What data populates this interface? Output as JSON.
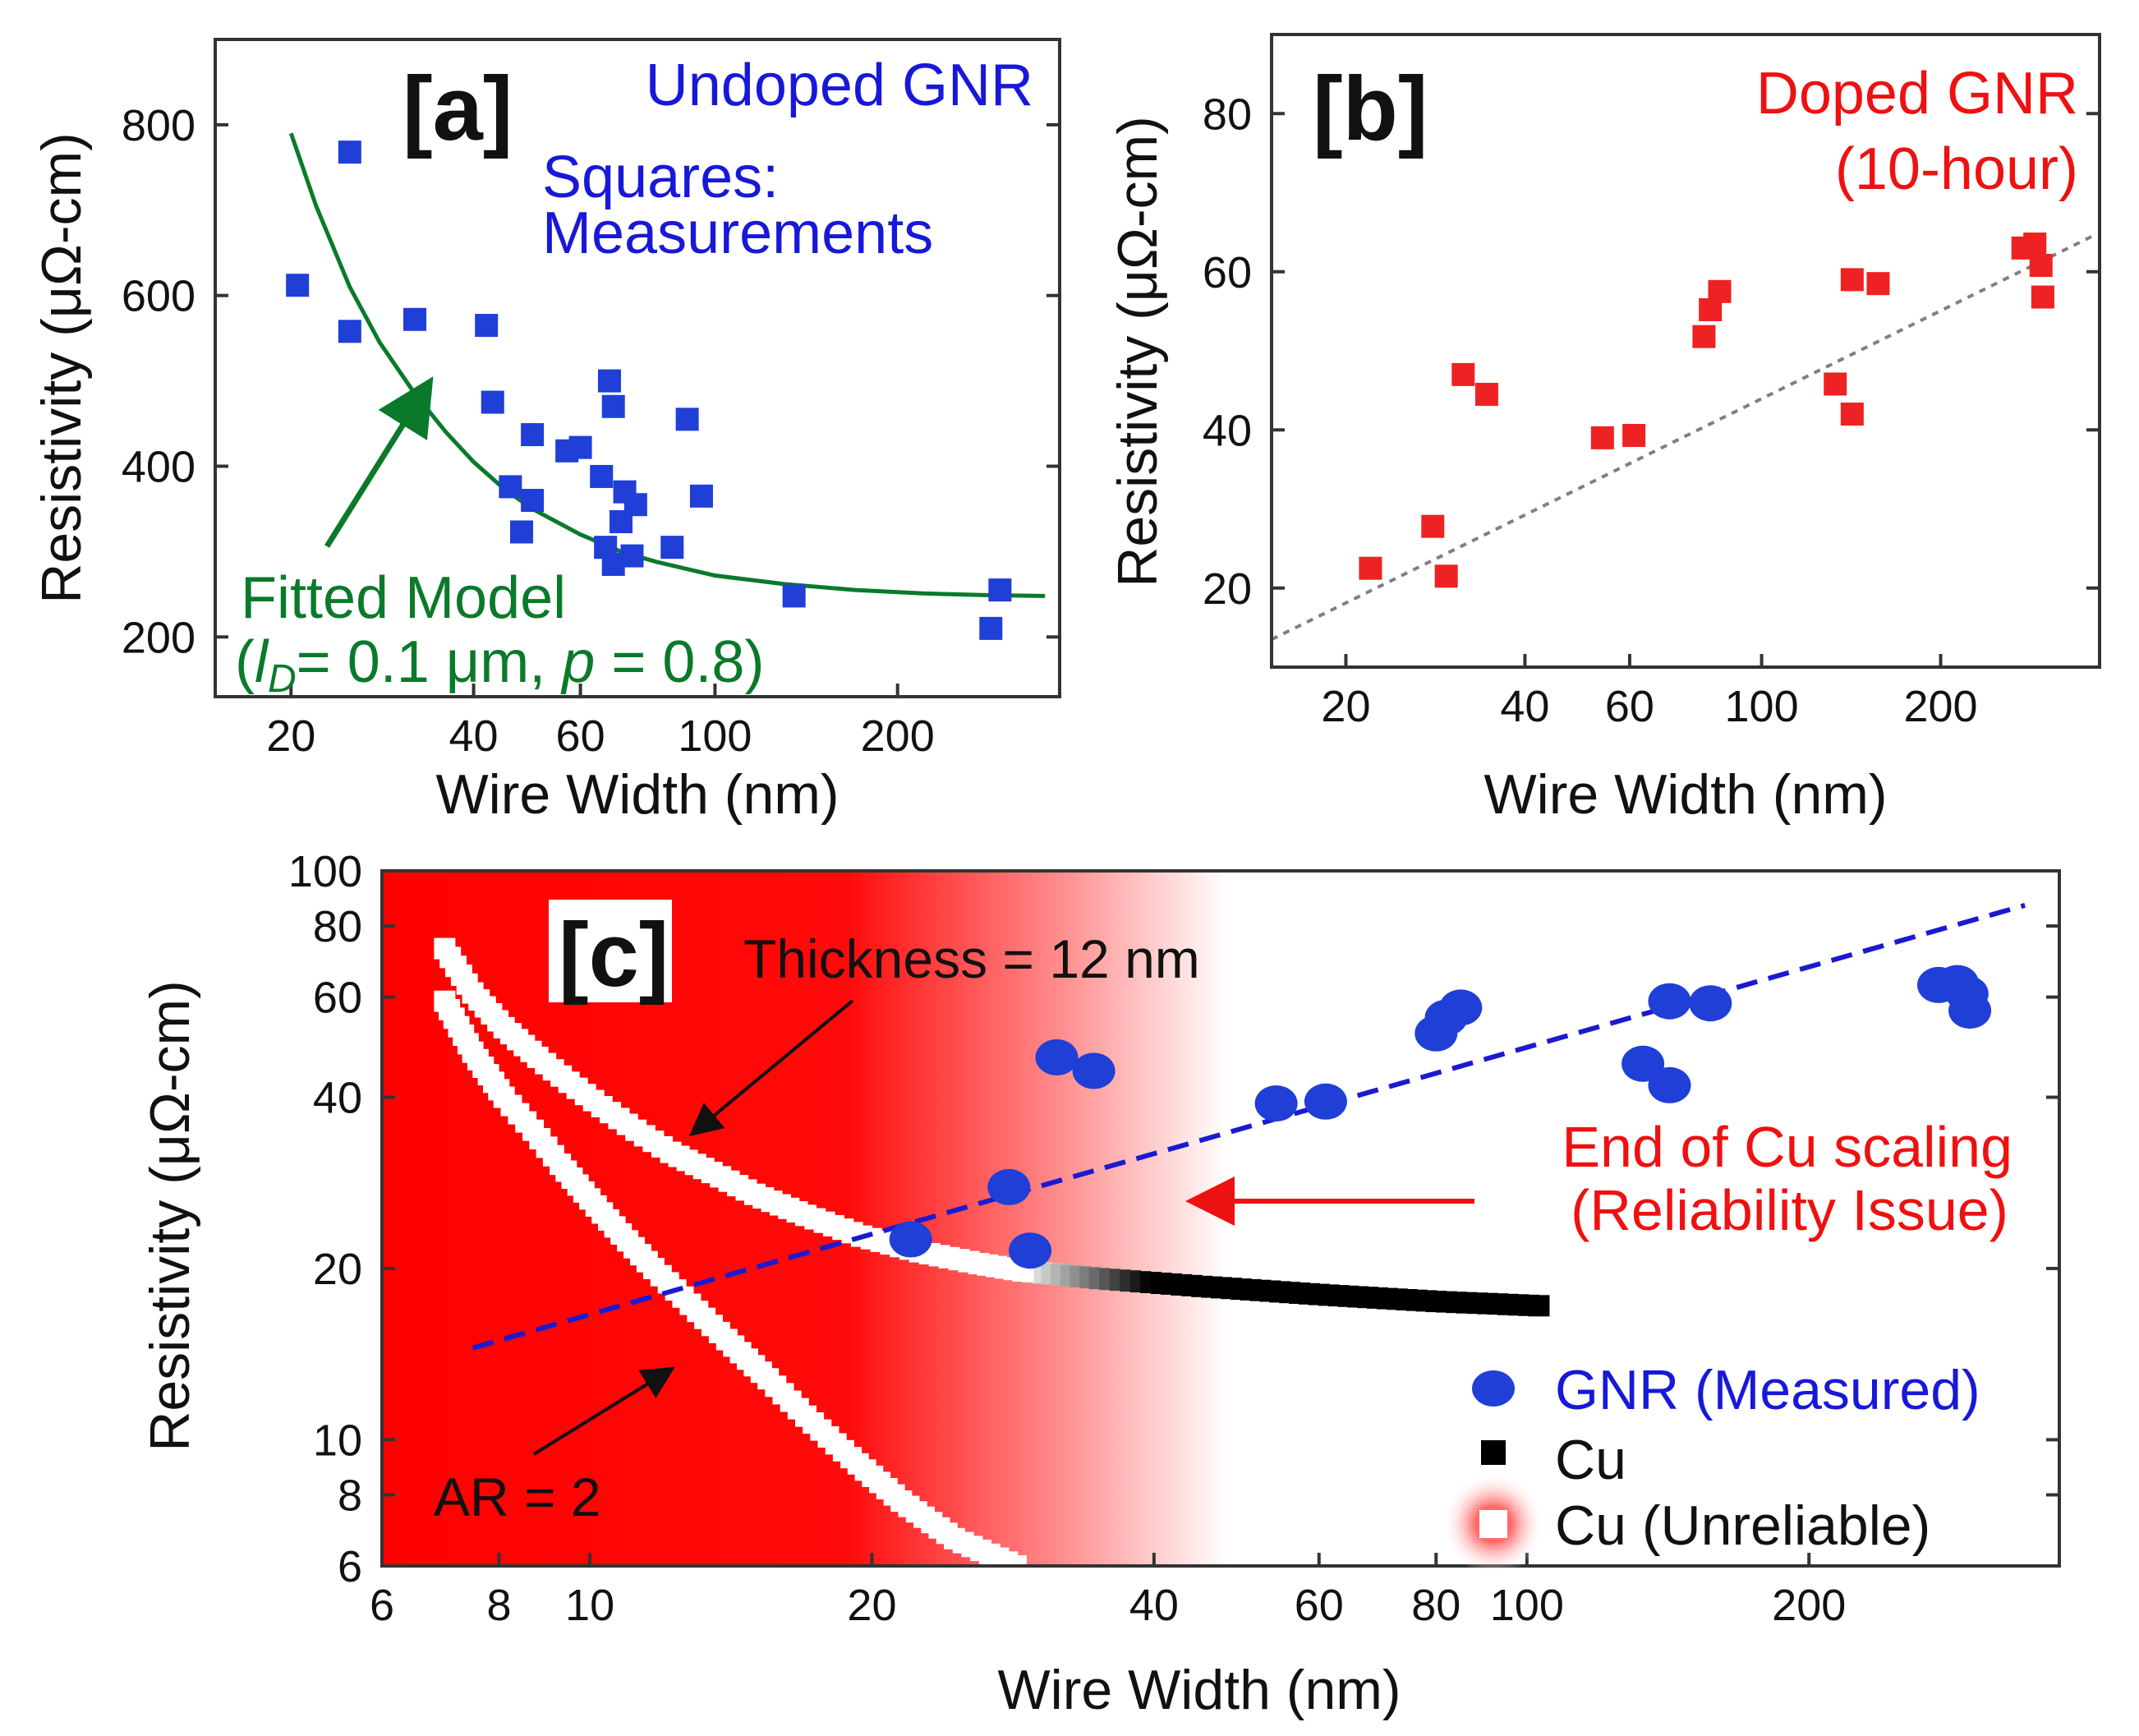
{
  "colors": {
    "blue": "#1818d8",
    "red": "#ee1111",
    "green": "#0a7a2a",
    "gray": "#808080",
    "black": "#000000",
    "marker_red": "#ee2222",
    "marker_blue": "#1f3fd6"
  },
  "chart_data": [
    {
      "id": "a",
      "type": "scatter",
      "panel_label": "[a]",
      "xlabel": "Wire Width (nm)",
      "ylabel": "Resistivity (μΩ-cm)",
      "xscale": "log",
      "xlim": [
        15,
        370
      ],
      "ylim": [
        130,
        900
      ],
      "xticks": [
        {
          "v": 20,
          "label": "20"
        },
        {
          "v": 40,
          "label": "40"
        },
        {
          "v": 60,
          "label": "60"
        },
        {
          "v": 100,
          "label": "100"
        },
        {
          "v": 200,
          "label": "200"
        }
      ],
      "yticks": [
        {
          "v": 200,
          "label": "200"
        },
        {
          "v": 400,
          "label": "400"
        },
        {
          "v": 600,
          "label": "600"
        },
        {
          "v": 800,
          "label": "800"
        }
      ],
      "annotations": {
        "title": "Undoped GNR",
        "squares_line1": "Squares:",
        "squares_line2": "Measurements",
        "fit_line1": "Fitted Model",
        "fit_l": "l",
        "fit_sub": "D",
        "fit_mid": "=  0.1 μm, ",
        "fit_p": "p",
        "fit_end": " = 0.8)",
        "fit_open": "("
      },
      "series": [
        {
          "name": "Measurements",
          "marker": "square",
          "points": [
            [
              20.5,
              612
            ],
            [
              25,
              768
            ],
            [
              25,
              558
            ],
            [
              32,
              572
            ],
            [
              42,
              565
            ],
            [
              43,
              475
            ],
            [
              46,
              376
            ],
            [
              48,
              323
            ],
            [
              50,
              437
            ],
            [
              50,
              360
            ],
            [
              57,
              418
            ],
            [
              60,
              422
            ],
            [
              65,
              388
            ],
            [
              66,
              305
            ],
            [
              67,
              500
            ],
            [
              68,
              470
            ],
            [
              68,
              285
            ],
            [
              70,
              335
            ],
            [
              71,
              370
            ],
            [
              73,
              295
            ],
            [
              74,
              355
            ],
            [
              85,
              305
            ],
            [
              90,
              455
            ],
            [
              95,
              365
            ],
            [
              135,
              248
            ],
            [
              285,
              210
            ],
            [
              295,
              255
            ]
          ]
        },
        {
          "name": "Fitted Model",
          "marker": "line",
          "points": [
            [
              20,
              790
            ],
            [
              22,
              705
            ],
            [
              25,
              610
            ],
            [
              28,
              545
            ],
            [
              32,
              485
            ],
            [
              36,
              440
            ],
            [
              40,
              405
            ],
            [
              45,
              373
            ],
            [
              50,
              350
            ],
            [
              60,
              320
            ],
            [
              70,
              300
            ],
            [
              80,
              288
            ],
            [
              100,
              272
            ],
            [
              130,
              262
            ],
            [
              170,
              255
            ],
            [
              220,
              251
            ],
            [
              280,
              249
            ],
            [
              350,
              248
            ]
          ]
        }
      ]
    },
    {
      "id": "b",
      "type": "scatter",
      "panel_label": "[b]",
      "xlabel": "Wire Width (nm)",
      "ylabel": "Resistivity (μΩ-cm)",
      "xscale": "log",
      "xlim": [
        15,
        370
      ],
      "ylim": [
        10,
        90
      ],
      "xticks": [
        {
          "v": 20,
          "label": "20"
        },
        {
          "v": 40,
          "label": "40"
        },
        {
          "v": 60,
          "label": "60"
        },
        {
          "v": 100,
          "label": "100"
        },
        {
          "v": 200,
          "label": "200"
        }
      ],
      "yticks": [
        {
          "v": 20,
          "label": "20"
        },
        {
          "v": 40,
          "label": "40"
        },
        {
          "v": 60,
          "label": "60"
        },
        {
          "v": 80,
          "label": "80"
        }
      ],
      "annotations": {
        "title": "Doped GNR",
        "subtitle": "(10-hour)"
      },
      "series": [
        {
          "name": "Doped GNR",
          "marker": "square",
          "points": [
            [
              22,
              22.5
            ],
            [
              28,
              27.8
            ],
            [
              29.5,
              21.5
            ],
            [
              31.5,
              47
            ],
            [
              34.5,
              44.5
            ],
            [
              54,
              39
            ],
            [
              61,
              39.3
            ],
            [
              80,
              51.8
            ],
            [
              82,
              55.2
            ],
            [
              85,
              57.5
            ],
            [
              133,
              45.8
            ],
            [
              142,
              42
            ],
            [
              142,
              59
            ],
            [
              157,
              58.5
            ],
            [
              275,
              63
            ],
            [
              288,
              63.5
            ],
            [
              295,
              60.8
            ],
            [
              297,
              56.8
            ]
          ]
        },
        {
          "name": "Trend",
          "marker": "dotted-line",
          "points": [
            [
              15,
              13.5
            ],
            [
              360,
              64.5
            ]
          ]
        }
      ]
    },
    {
      "id": "c",
      "type": "scatter",
      "panel_label": "[c]",
      "xlabel": "Wire Width (nm)",
      "ylabel": "Resistivity (μΩ-cm)",
      "xscale": "log",
      "yscale": "log",
      "xlim": [
        6,
        370
      ],
      "ylim": [
        6,
        100
      ],
      "xticks": [
        {
          "v": 6,
          "label": "6"
        },
        {
          "v": 8,
          "label": "8"
        },
        {
          "v": 10,
          "label": "10"
        },
        {
          "v": 20,
          "label": "20"
        },
        {
          "v": 40,
          "label": "40"
        },
        {
          "v": 60,
          "label": "60"
        },
        {
          "v": 80,
          "label": "80"
        },
        {
          "v": 100,
          "label": "100"
        },
        {
          "v": 200,
          "label": "200"
        }
      ],
      "yticks": [
        {
          "v": 6,
          "label": "6"
        },
        {
          "v": 8,
          "label": "8"
        },
        {
          "v": 10,
          "label": "10"
        },
        {
          "v": 20,
          "label": "20"
        },
        {
          "v": 40,
          "label": "40"
        },
        {
          "v": 60,
          "label": "60"
        },
        {
          "v": 80,
          "label": "80"
        },
        {
          "v": 100,
          "label": "100"
        }
      ],
      "annotations": {
        "thickness": "Thickness = 12 nm",
        "ar": "AR = 2",
        "end_cu_line1": "End of Cu scaling",
        "end_cu_line2": "(Reliability Issue)"
      },
      "unreliable_region_x_max": 48,
      "legend": [
        {
          "name": "GNR (Measured)",
          "marker": "circle"
        },
        {
          "name": "Cu",
          "marker": "black-square"
        },
        {
          "name": "Cu (Unreliable)",
          "marker": "white-square"
        }
      ],
      "series": [
        {
          "name": "GNR (Measured)",
          "marker": "circle",
          "points": [
            [
              22,
              22.5
            ],
            [
              28,
              27.8
            ],
            [
              29.5,
              21.5
            ],
            [
              31.5,
              47
            ],
            [
              34.5,
              44.5
            ],
            [
              54,
              39
            ],
            [
              61,
              39.3
            ],
            [
              80,
              51.8
            ],
            [
              82,
              55.2
            ],
            [
              85,
              57.5
            ],
            [
              133,
              45.8
            ],
            [
              142,
              42
            ],
            [
              142,
              59
            ],
            [
              157,
              58.5
            ],
            [
              275,
              63
            ],
            [
              288,
              63.5
            ],
            [
              295,
              60.8
            ],
            [
              297,
              56.8
            ]
          ]
        },
        {
          "name": "GNR trend",
          "marker": "dashed-line",
          "points": [
            [
              7.5,
              14.5
            ],
            [
              340,
              87
            ]
          ]
        },
        {
          "name": "Cu thickness 12 nm (unreliable)",
          "marker": "white-square",
          "points": [
            [
              7.0,
              73
            ],
            [
              7.5,
              61
            ],
            [
              8.1,
              53
            ],
            [
              8.8,
              47
            ],
            [
              9.5,
              42.5
            ],
            [
              10.3,
              38.5
            ],
            [
              11.2,
              35
            ],
            [
              12.2,
              32
            ],
            [
              13.5,
              29.5
            ],
            [
              15,
              27
            ],
            [
              17,
              24.8
            ],
            [
              19.5,
              22.8
            ],
            [
              22.5,
              21.4
            ],
            [
              26,
              20.4
            ],
            [
              29,
              19.8
            ]
          ]
        },
        {
          "name": "Cu thickness 12 nm",
          "marker": "black-square",
          "points": [
            [
              29,
              19.8
            ],
            [
              35,
              19.2
            ],
            [
              45,
              18.6
            ],
            [
              60,
              18
            ],
            [
              80,
              17.5
            ],
            [
              103,
              17.2
            ]
          ]
        },
        {
          "name": "Cu AR = 2 (unreliable)",
          "marker": "white-square",
          "points": [
            [
              7.0,
              59
            ],
            [
              7.5,
              48
            ],
            [
              8.1,
              40
            ],
            [
              8.7,
              35
            ],
            [
              9.3,
              30.5
            ],
            [
              10.0,
              26.5
            ],
            [
              10.8,
              23
            ],
            [
              11.7,
              20
            ],
            [
              12.8,
              17.3
            ],
            [
              14.0,
              15
            ],
            [
              15.5,
              12.8
            ],
            [
              17.0,
              11
            ],
            [
              19.0,
              9.3
            ],
            [
              21.5,
              7.8
            ],
            [
              24.5,
              6.7
            ],
            [
              28.5,
              6
            ]
          ]
        }
      ]
    }
  ]
}
